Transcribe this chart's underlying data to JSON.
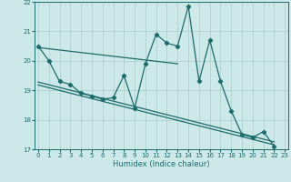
{
  "xlabel": "Humidex (Indice chaleur)",
  "x_values": [
    0,
    1,
    2,
    3,
    4,
    5,
    6,
    7,
    8,
    9,
    10,
    11,
    12,
    13,
    14,
    15,
    16,
    17,
    18,
    19,
    20,
    21,
    22
  ],
  "line1_y": [
    20.5,
    20.0,
    19.3,
    19.2,
    18.9,
    18.8,
    18.7,
    18.75,
    19.5,
    18.4,
    19.9,
    20.9,
    20.6,
    20.5,
    21.85,
    19.3,
    20.7,
    19.3,
    18.3,
    17.5,
    17.4,
    17.6,
    17.1
  ],
  "trend1_x": [
    0,
    13
  ],
  "trend1_y": [
    20.45,
    19.9
  ],
  "trend2_x": [
    0,
    22
  ],
  "trend2_y": [
    19.28,
    17.25
  ],
  "trend3_x": [
    0,
    22
  ],
  "trend3_y": [
    19.18,
    17.15
  ],
  "ylim": [
    17.0,
    22.0
  ],
  "yticks": [
    17,
    18,
    19,
    20,
    21,
    22
  ],
  "xticks": [
    0,
    1,
    2,
    3,
    4,
    5,
    6,
    7,
    8,
    9,
    10,
    11,
    12,
    13,
    14,
    15,
    16,
    17,
    18,
    19,
    20,
    21,
    22,
    23
  ],
  "xlim": [
    -0.3,
    23.3
  ],
  "bg_color": "#cce8e8",
  "grid_color": "#aacccc",
  "line_color": "#1e6b6b",
  "label_color": "#1e6b6b"
}
